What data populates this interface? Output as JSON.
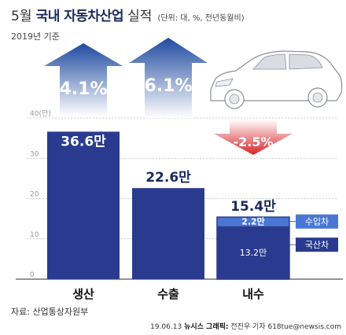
{
  "header": {
    "title_month": "5월",
    "title_main": "국내 자동차산업",
    "title_tail": "실적",
    "unit": "(단위: 대, %, 전년동월비)",
    "subtitle": "2019년 기준"
  },
  "footer": {
    "source": "자료: 산업통상자원부",
    "credit_date": "19.06.13",
    "credit_org": "뉴시스 그래픽:",
    "credit_name": "전진우 기자 618tue@newsis.com"
  },
  "colors": {
    "bar": "#2a3b8f",
    "bar_light": "#4a77d4",
    "up_arrow_top": "#1f4aa0",
    "up_arrow_bottom": "#ffffff",
    "down_arrow_top": "#ffffff",
    "down_arrow_bottom": "#d8232a",
    "grid": "#bbbbbb"
  },
  "chart_data": {
    "type": "bar",
    "title": "5월 국내 자동차산업 실적",
    "unit_label": "(단위: 대, %, 전년동월비)",
    "axis_top_label": "40(만)",
    "ylim": [
      0,
      40
    ],
    "yticks": [
      0,
      10,
      20,
      30,
      40
    ],
    "ytick_labels": [
      "0",
      "10",
      "20",
      "30",
      "40(만)"
    ],
    "grid": true,
    "categories": [
      "생산",
      "수출",
      "내수"
    ],
    "values": [
      36.6,
      22.6,
      15.4
    ],
    "value_labels": [
      "36.6만",
      "22.6만",
      "15.4만"
    ],
    "changes": [
      {
        "category": "생산",
        "value": 4.1,
        "label": "4.1%",
        "direction": "up"
      },
      {
        "category": "수출",
        "value": 6.1,
        "label": "6.1%",
        "direction": "up"
      },
      {
        "category": "내수",
        "value": -2.5,
        "label": "-2.5%",
        "direction": "down"
      }
    ],
    "breakdown": {
      "category": "내수",
      "parts": [
        {
          "name": "국산차",
          "value": 13.2,
          "label": "13.2만"
        },
        {
          "name": "수입차",
          "value": 2.2,
          "label": "2.2만"
        }
      ]
    }
  }
}
